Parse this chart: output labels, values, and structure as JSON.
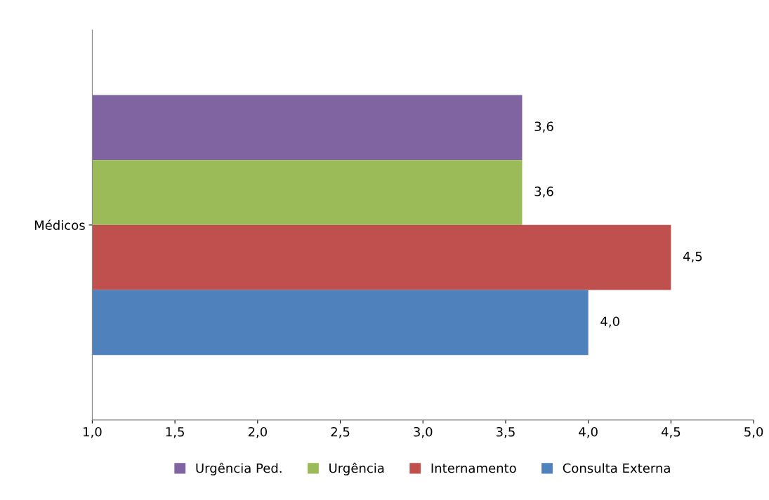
{
  "chart_data": {
    "type": "bar",
    "orientation": "horizontal",
    "categories": [
      "Médicos"
    ],
    "series": [
      {
        "name": "Urgência Ped.",
        "color": "#8064a2",
        "values": [
          3.6
        ],
        "value_labels": [
          "3,6"
        ]
      },
      {
        "name": "Urgência",
        "color": "#9bbb59",
        "values": [
          3.6
        ],
        "value_labels": [
          "3,6"
        ]
      },
      {
        "name": "Internamento",
        "color": "#c0504d",
        "values": [
          4.5
        ],
        "value_labels": [
          "4,5"
        ]
      },
      {
        "name": "Consulta Externa",
        "color": "#4f81bd",
        "values": [
          4.0
        ],
        "value_labels": [
          "4,0"
        ]
      }
    ],
    "xlim": [
      1.0,
      5.0
    ],
    "xticks": [
      {
        "value": 1.0,
        "label": "1,0"
      },
      {
        "value": 1.5,
        "label": "1,5"
      },
      {
        "value": 2.0,
        "label": "2,0"
      },
      {
        "value": 2.5,
        "label": "2,5"
      },
      {
        "value": 3.0,
        "label": "3,0"
      },
      {
        "value": 3.5,
        "label": "3,5"
      },
      {
        "value": 4.0,
        "label": "4,0"
      },
      {
        "value": 4.5,
        "label": "4,5"
      },
      {
        "value": 5.0,
        "label": "5,0"
      }
    ],
    "grid": false,
    "legend": "bottom"
  }
}
